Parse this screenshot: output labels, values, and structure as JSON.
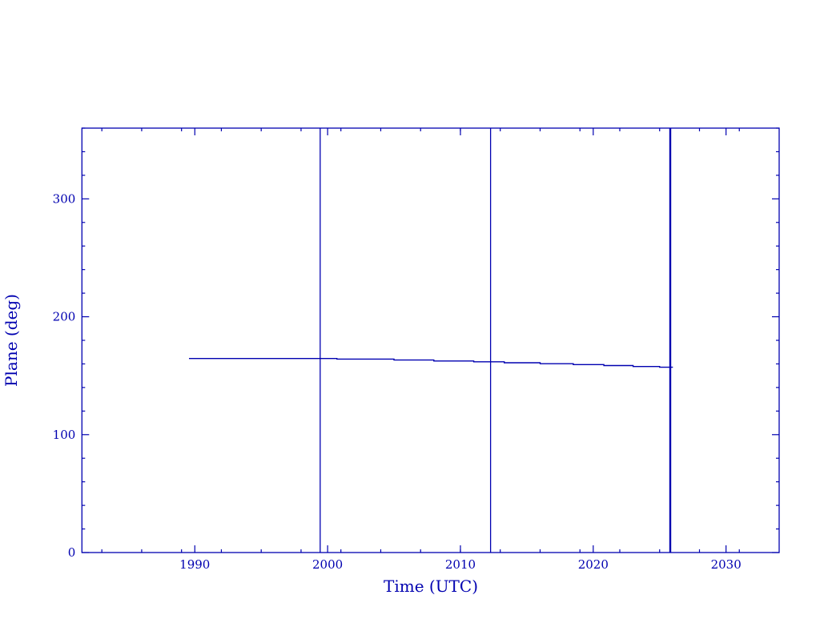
{
  "chart_data": {
    "type": "line",
    "title": "",
    "xlabel": "Time (UTC)",
    "ylabel": "Plane (deg)",
    "xlim": [
      1981.5,
      2034.0
    ],
    "ylim": [
      0,
      360
    ],
    "x_major_ticks": [
      1990,
      2000,
      2010,
      2020,
      2030
    ],
    "x_tick_labels": [
      "1990",
      "2000",
      "2010",
      "2020",
      "2030"
    ],
    "x_minor_ticks": [
      1983,
      1986,
      1989,
      1992,
      1995,
      1998,
      2001,
      2004,
      2007,
      2010,
      2013,
      2016,
      2019,
      2022,
      2025,
      2028,
      2031
    ],
    "y_major_ticks": [
      0,
      100,
      200,
      300
    ],
    "y_tick_labels": [
      "0",
      "100",
      "200",
      "300"
    ],
    "y_minor_step": 20,
    "grid": false,
    "color": "#0000b0",
    "series": [
      {
        "x": [
          1989.56,
          2000.7,
          2000.7,
          2005.0,
          2005.0,
          2008.0,
          2008.0,
          2011.0,
          2011.0,
          2013.3,
          2013.3,
          2016.0,
          2016.0,
          2018.5,
          2018.5,
          2020.8,
          2020.8,
          2023.0,
          2023.0,
          2025.0,
          2025.0,
          2026.0
        ],
        "y": [
          164.6,
          164.6,
          164.1,
          164.1,
          163.3,
          163.3,
          162.5,
          162.5,
          161.8,
          161.8,
          161.0,
          161.0,
          160.2,
          160.2,
          159.4,
          159.4,
          158.6,
          158.6,
          157.8,
          157.8,
          157.2,
          157.2
        ]
      }
    ],
    "vertical_lines": [
      1999.44,
      2012.27,
      2025.8
    ]
  }
}
